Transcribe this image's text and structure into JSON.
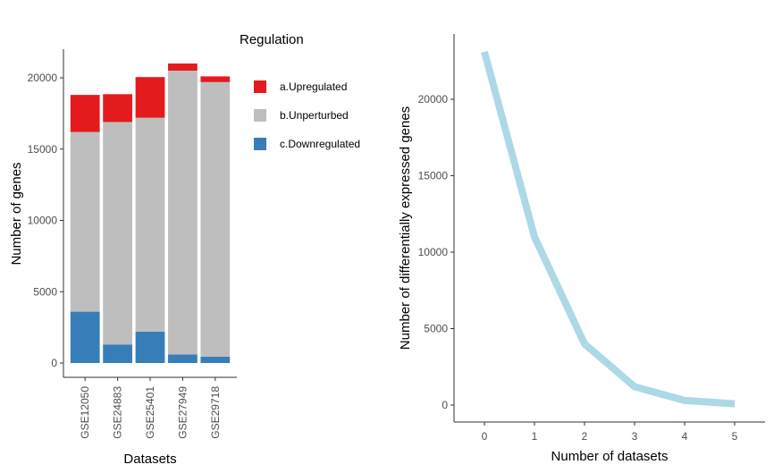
{
  "chart_data": [
    {
      "type": "bar",
      "stacked": true,
      "categories": [
        "GSE12050",
        "GSE24883",
        "GSE25401",
        "GSE27949",
        "GSE29718"
      ],
      "series": [
        {
          "name": "c.Downregulated",
          "color": "#377EB8",
          "values": [
            3600,
            1300,
            2200,
            600,
            450
          ]
        },
        {
          "name": "b.Unperturbed",
          "color": "#BEBEBE",
          "values": [
            12600,
            15600,
            15000,
            19900,
            19250
          ]
        },
        {
          "name": "a.Upregulated",
          "color": "#E41A1C",
          "values": [
            2600,
            1950,
            2850,
            500,
            400
          ]
        }
      ],
      "xlabel": "Datasets",
      "ylabel": "Number of genes",
      "ylim": [
        0,
        21000
      ],
      "yticks": [
        0,
        5000,
        10000,
        15000,
        20000
      ],
      "legend": {
        "title": "Regulation",
        "placement": "right",
        "entries": [
          "a.Upregulated",
          "b.Unperturbed",
          "c.Downregulated"
        ]
      },
      "grid": false
    },
    {
      "type": "line",
      "x": [
        0,
        1,
        2,
        3,
        4,
        5
      ],
      "y": [
        23100,
        11000,
        4000,
        1200,
        300,
        80
      ],
      "color": "#ADD8E6",
      "xlabel": "Number of datasets",
      "ylabel": "Number of differentially expressed genes",
      "xticks": [
        0,
        1,
        2,
        3,
        4,
        5
      ],
      "yticks": [
        0,
        5000,
        10000,
        15000,
        20000
      ],
      "xlim": [
        -0.6,
        5.6
      ],
      "ylim": [
        -1000,
        24500
      ],
      "grid": false
    }
  ]
}
